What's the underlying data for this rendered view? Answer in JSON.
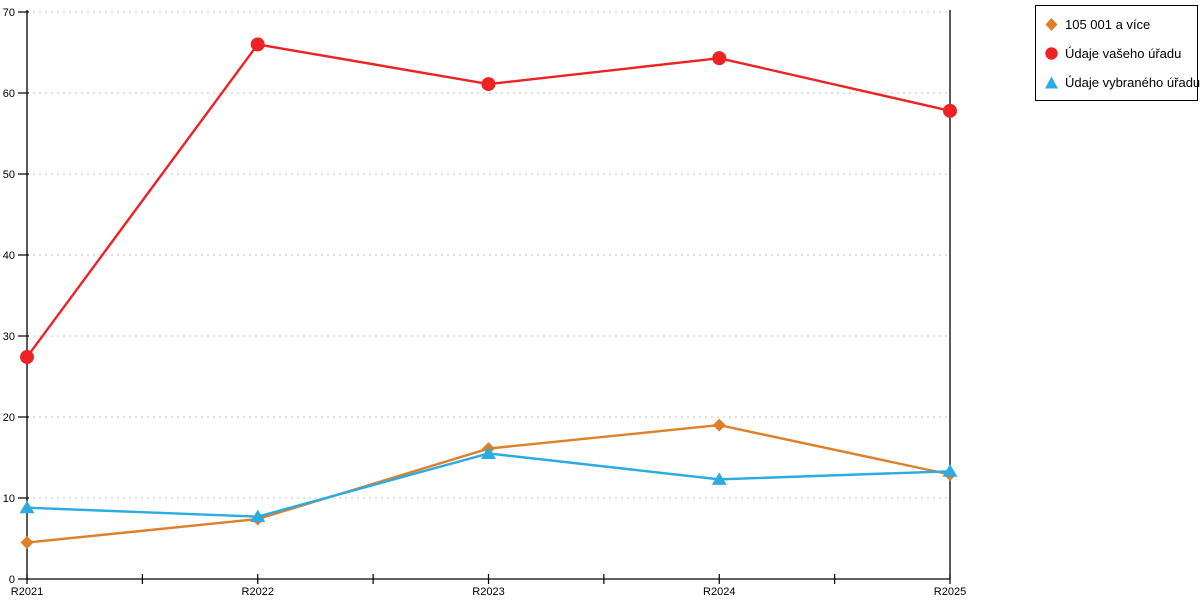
{
  "chart_data": {
    "type": "line",
    "title": "",
    "xlabel": "",
    "ylabel": "",
    "categories": [
      "R2021",
      "R2022",
      "R2023",
      "R2024",
      "R2025"
    ],
    "series": [
      {
        "name": "105 001 a více",
        "marker": "diamond",
        "color": "#df7f28",
        "values": [
          4.5,
          7.4,
          16.1,
          19.0,
          12.9
        ]
      },
      {
        "name": "Údaje vašeho úřadu",
        "marker": "circle",
        "color": "#ee2124",
        "values": [
          27.4,
          66.0,
          61.1,
          64.3,
          57.8
        ]
      },
      {
        "name": "Údaje vybraného úřadu",
        "marker": "triangle",
        "color": "#2aabe2",
        "values": [
          8.8,
          7.7,
          15.5,
          12.3,
          13.3
        ]
      }
    ],
    "ylim": [
      0,
      70
    ],
    "yticks": [
      0,
      10,
      20,
      30,
      40,
      50,
      60,
      70
    ],
    "grid": "horizontal-dashed",
    "grid_color": "#c6c6c6",
    "axis_color": "#000000",
    "legend_position": "top-right"
  }
}
